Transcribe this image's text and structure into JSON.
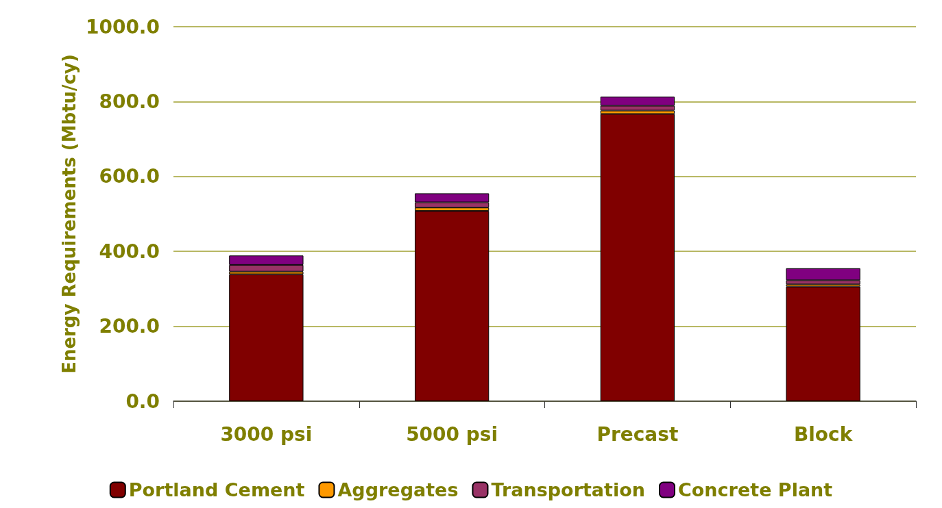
{
  "chart_data": {
    "type": "bar",
    "stacked": true,
    "ylabel": "Energy Requirements (Mbtu/cy)",
    "categories": [
      "3000 psi",
      "5000 psi",
      "Precast",
      "Block"
    ],
    "series": [
      {
        "name": "Portland Cement",
        "color": "#800000",
        "values": [
          339,
          508,
          767,
          306
        ]
      },
      {
        "name": "Aggregates",
        "color": "#ff9900",
        "values": [
          7,
          9,
          9,
          6
        ]
      },
      {
        "name": "Transportation",
        "color": "#993366",
        "values": [
          18,
          14,
          13,
          11
        ]
      },
      {
        "name": "Concrete Plant",
        "color": "#800080",
        "values": [
          25,
          24,
          24,
          32
        ]
      }
    ],
    "ylim": [
      0,
      1000
    ],
    "yticks": [
      {
        "value": 0,
        "label": "0.0"
      },
      {
        "value": 200,
        "label": "200.0"
      },
      {
        "value": 400,
        "label": "400.0"
      },
      {
        "value": 600,
        "label": "600.0"
      },
      {
        "value": 800,
        "label": "800.0"
      },
      {
        "value": 1000,
        "label": "1000.0"
      }
    ],
    "grid": "y",
    "legend": "bottom"
  }
}
